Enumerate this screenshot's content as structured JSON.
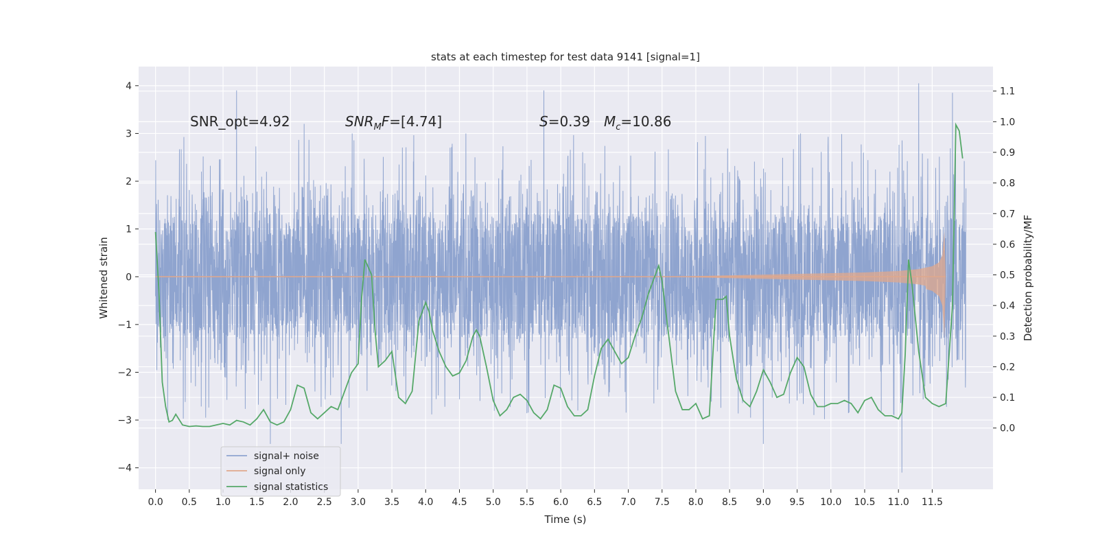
{
  "chart_data": {
    "type": "line",
    "title": "stats at each timestep for test data 9141 [signal=1]",
    "xlabel": "Time (s)",
    "ylabel": "Whitened strain",
    "y2label": "Detection probability/MF",
    "xlim": [
      -0.25,
      12.4
    ],
    "ylim": [
      -4.45,
      4.4
    ],
    "y2lim": [
      -0.2,
      1.18
    ],
    "xticks": [
      0.0,
      0.5,
      1.0,
      1.5,
      2.0,
      2.5,
      3.0,
      3.5,
      4.0,
      4.5,
      5.0,
      5.5,
      6.0,
      6.5,
      7.0,
      7.5,
      8.0,
      8.5,
      9.0,
      9.5,
      10.0,
      10.5,
      11.0,
      11.5
    ],
    "xtick_labels": [
      "0.0",
      "0.5",
      "1.0",
      "1.5",
      "2.0",
      "2.5",
      "3.0",
      "3.5",
      "4.0",
      "4.5",
      "5.0",
      "5.5",
      "6.0",
      "6.5",
      "7.0",
      "7.5",
      "8.0",
      "8.5",
      "9.0",
      "9.5",
      "10.0",
      "10.5",
      "11.0",
      "11.5"
    ],
    "yticks": [
      -4,
      -3,
      -2,
      -1,
      0,
      1,
      2,
      3,
      4
    ],
    "ytick_labels": [
      "−4",
      "−3",
      "−2",
      "−1",
      "0",
      "1",
      "2",
      "3",
      "4"
    ],
    "y2ticks": [
      0.0,
      0.1,
      0.2,
      0.3,
      0.4,
      0.5,
      0.6,
      0.7,
      0.8,
      0.9,
      1.0,
      1.1
    ],
    "y2tick_labels": [
      "0.0",
      "0.1",
      "0.2",
      "0.3",
      "0.4",
      "0.5",
      "0.6",
      "0.7",
      "0.8",
      "0.9",
      "1.0",
      "1.1"
    ],
    "grid": true,
    "legend_position": "lower-left",
    "annotations": [
      {
        "id": "snr-opt",
        "text": "SNR_opt=4.92"
      },
      {
        "id": "snr-mf",
        "text": "SNR_MF=[4.74]"
      },
      {
        "id": "s",
        "text": "S=0.39"
      },
      {
        "id": "mc",
        "text": "M_c=10.86"
      }
    ],
    "series": [
      {
        "name": "signal+ noise",
        "axis": "left",
        "color": "#8fa4cf",
        "t_range": [
          0.0,
          12.0
        ],
        "envelope_typical": [
          -1.3,
          1.3
        ],
        "envelope_peaks": [
          -4.1,
          4.05
        ],
        "peaks": [
          {
            "x": 1.2,
            "y": 3.9
          },
          {
            "x": 2.2,
            "y": 3.2
          },
          {
            "x": 5.75,
            "y": 3.9
          },
          {
            "x": 11.3,
            "y": 4.05
          },
          {
            "x": 11.8,
            "y": 3.85
          },
          {
            "x": 11.05,
            "y": -4.1
          },
          {
            "x": 1.7,
            "y": -3.5
          },
          {
            "x": 2.75,
            "y": -3.5
          },
          {
            "x": 9.0,
            "y": -3.5
          }
        ]
      },
      {
        "name": "signal only",
        "axis": "left",
        "color": "#e0a88c",
        "x": [
          0.0,
          7.5,
          8.5,
          9.5,
          10.5,
          11.0,
          11.3,
          11.5,
          11.6,
          11.65,
          11.68,
          11.7
        ],
        "amplitude": [
          0.0,
          0.0,
          0.03,
          0.06,
          0.09,
          0.12,
          0.16,
          0.22,
          0.3,
          0.45,
          0.95,
          0.0
        ]
      },
      {
        "name": "signal statistics",
        "axis": "right",
        "color": "#55a868",
        "x": [
          0.0,
          0.05,
          0.1,
          0.15,
          0.2,
          0.25,
          0.3,
          0.4,
          0.5,
          0.6,
          0.7,
          0.8,
          0.9,
          1.0,
          1.1,
          1.2,
          1.3,
          1.4,
          1.5,
          1.6,
          1.7,
          1.8,
          1.9,
          2.0,
          2.1,
          2.2,
          2.3,
          2.4,
          2.5,
          2.6,
          2.7,
          2.8,
          2.9,
          3.0,
          3.05,
          3.1,
          3.2,
          3.25,
          3.3,
          3.4,
          3.5,
          3.6,
          3.7,
          3.8,
          3.9,
          4.0,
          4.05,
          4.1,
          4.2,
          4.3,
          4.4,
          4.5,
          4.6,
          4.7,
          4.75,
          4.8,
          4.9,
          5.0,
          5.1,
          5.2,
          5.3,
          5.4,
          5.5,
          5.6,
          5.7,
          5.8,
          5.9,
          6.0,
          6.1,
          6.2,
          6.3,
          6.4,
          6.5,
          6.6,
          6.7,
          6.8,
          6.9,
          7.0,
          7.1,
          7.2,
          7.3,
          7.4,
          7.45,
          7.5,
          7.6,
          7.7,
          7.8,
          7.9,
          8.0,
          8.1,
          8.2,
          8.3,
          8.4,
          8.45,
          8.5,
          8.6,
          8.7,
          8.8,
          8.9,
          9.0,
          9.1,
          9.2,
          9.3,
          9.4,
          9.5,
          9.6,
          9.7,
          9.8,
          9.9,
          10.0,
          10.1,
          10.2,
          10.3,
          10.4,
          10.5,
          10.6,
          10.7,
          10.8,
          10.9,
          11.0,
          11.05,
          11.1,
          11.15,
          11.2,
          11.3,
          11.4,
          11.5,
          11.6,
          11.7,
          11.8,
          11.85,
          11.9,
          11.95
        ],
        "y": [
          0.64,
          0.45,
          0.15,
          0.07,
          0.02,
          0.025,
          0.045,
          0.01,
          0.005,
          0.007,
          0.005,
          0.005,
          0.01,
          0.015,
          0.01,
          0.025,
          0.02,
          0.01,
          0.03,
          0.06,
          0.02,
          0.01,
          0.02,
          0.06,
          0.14,
          0.13,
          0.05,
          0.03,
          0.05,
          0.07,
          0.06,
          0.12,
          0.18,
          0.21,
          0.42,
          0.55,
          0.5,
          0.32,
          0.2,
          0.22,
          0.25,
          0.1,
          0.08,
          0.12,
          0.35,
          0.41,
          0.38,
          0.32,
          0.25,
          0.2,
          0.17,
          0.18,
          0.22,
          0.3,
          0.32,
          0.3,
          0.2,
          0.09,
          0.04,
          0.06,
          0.1,
          0.11,
          0.09,
          0.05,
          0.03,
          0.06,
          0.14,
          0.13,
          0.07,
          0.04,
          0.04,
          0.06,
          0.17,
          0.26,
          0.29,
          0.25,
          0.21,
          0.23,
          0.3,
          0.36,
          0.44,
          0.5,
          0.53,
          0.48,
          0.3,
          0.12,
          0.06,
          0.06,
          0.08,
          0.03,
          0.04,
          0.42,
          0.42,
          0.43,
          0.3,
          0.16,
          0.09,
          0.07,
          0.12,
          0.19,
          0.15,
          0.1,
          0.11,
          0.18,
          0.23,
          0.2,
          0.11,
          0.07,
          0.07,
          0.08,
          0.08,
          0.09,
          0.08,
          0.05,
          0.09,
          0.1,
          0.06,
          0.04,
          0.04,
          0.03,
          0.05,
          0.24,
          0.55,
          0.47,
          0.25,
          0.1,
          0.08,
          0.07,
          0.08,
          0.4,
          0.99,
          0.97,
          0.88
        ]
      }
    ]
  }
}
